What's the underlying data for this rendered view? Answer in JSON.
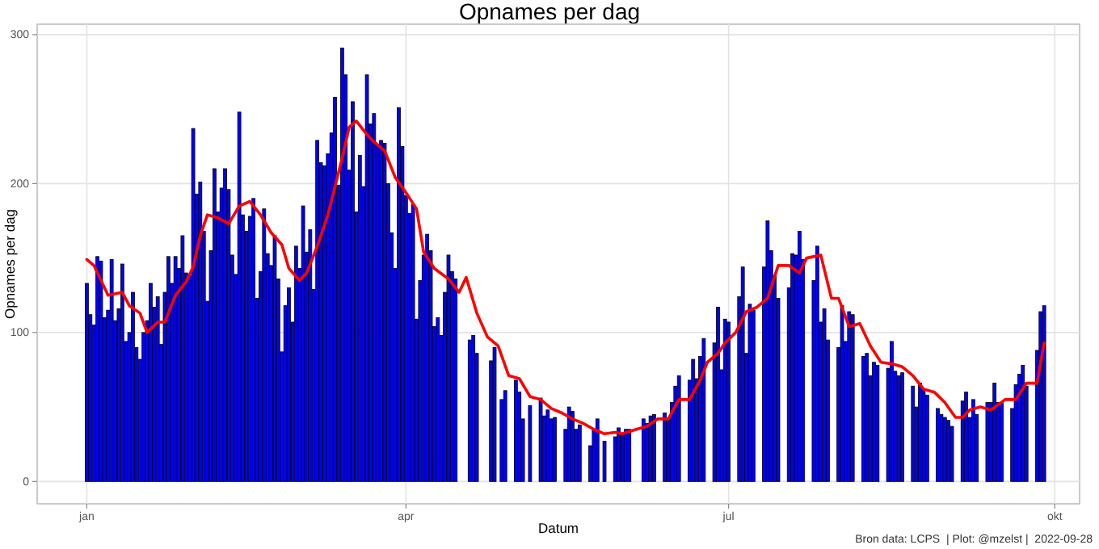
{
  "chart_data": {
    "type": "bar",
    "title": "Opnames per dag",
    "xlabel": "Datum",
    "ylabel": "Opnames per dag",
    "annotations": [
      "Bron data: LCPS  | Plot: @mzelst |  2022-09-28"
    ],
    "xlim": [
      "2021-12-18",
      "2022-10-08"
    ],
    "ylim": [
      -15,
      307
    ],
    "xticks": [
      {
        "value": "2022-01-01",
        "label": "jan"
      },
      {
        "value": "2022-04-01",
        "label": "apr"
      },
      {
        "value": "2022-07-01",
        "label": "jul"
      },
      {
        "value": "2022-10-01",
        "label": "okt"
      }
    ],
    "yticks": [
      0,
      100,
      200,
      300
    ],
    "grid": true,
    "series": [
      {
        "color": "#0000ff",
        "x": [
          "2022-01-01",
          "2022-01-02",
          "2022-01-03",
          "2022-01-04",
          "2022-01-05",
          "2022-01-06",
          "2022-01-07",
          "2022-01-08",
          "2022-01-09",
          "2022-01-10",
          "2022-01-11",
          "2022-01-12",
          "2022-01-13",
          "2022-01-14",
          "2022-01-15",
          "2022-01-16",
          "2022-01-17",
          "2022-01-18",
          "2022-01-19",
          "2022-01-20",
          "2022-01-21",
          "2022-01-22",
          "2022-01-23",
          "2022-01-24",
          "2022-01-25",
          "2022-01-26",
          "2022-01-27",
          "2022-01-28",
          "2022-01-29",
          "2022-01-30",
          "2022-01-31",
          "2022-02-01",
          "2022-02-02",
          "2022-02-03",
          "2022-02-04",
          "2022-02-05",
          "2022-02-06",
          "2022-02-07",
          "2022-02-08",
          "2022-02-09",
          "2022-02-10",
          "2022-02-11",
          "2022-02-12",
          "2022-02-13",
          "2022-02-14",
          "2022-02-15",
          "2022-02-16",
          "2022-02-17",
          "2022-02-18",
          "2022-02-19",
          "2022-02-20",
          "2022-02-21",
          "2022-02-22",
          "2022-02-23",
          "2022-02-24",
          "2022-02-25",
          "2022-02-26",
          "2022-02-27",
          "2022-02-28",
          "2022-03-01",
          "2022-03-02",
          "2022-03-03",
          "2022-03-04",
          "2022-03-05",
          "2022-03-06",
          "2022-03-07",
          "2022-03-08",
          "2022-03-09",
          "2022-03-10",
          "2022-03-11",
          "2022-03-12",
          "2022-03-13",
          "2022-03-14",
          "2022-03-15",
          "2022-03-16",
          "2022-03-17",
          "2022-03-18",
          "2022-03-19",
          "2022-03-20",
          "2022-03-21",
          "2022-03-22",
          "2022-03-23",
          "2022-03-24",
          "2022-03-25",
          "2022-03-26",
          "2022-03-27",
          "2022-03-28",
          "2022-03-29",
          "2022-03-30",
          "2022-03-31",
          "2022-04-01",
          "2022-04-02",
          "2022-04-03",
          "2022-04-04",
          "2022-04-05",
          "2022-04-06",
          "2022-04-07",
          "2022-04-08",
          "2022-04-09",
          "2022-04-10",
          "2022-04-11",
          "2022-04-12",
          "2022-04-13",
          "2022-04-14",
          "2022-04-15",
          "2022-04-19",
          "2022-04-20",
          "2022-04-21",
          "2022-04-25",
          "2022-04-26",
          "2022-04-28",
          "2022-04-29",
          "2022-05-02",
          "2022-05-03",
          "2022-05-04",
          "2022-05-06",
          "2022-05-09",
          "2022-05-10",
          "2022-05-11",
          "2022-05-12",
          "2022-05-13",
          "2022-05-16",
          "2022-05-17",
          "2022-05-18",
          "2022-05-19",
          "2022-05-20",
          "2022-05-23",
          "2022-05-24",
          "2022-05-25",
          "2022-05-27",
          "2022-05-30",
          "2022-05-31",
          "2022-06-01",
          "2022-06-02",
          "2022-06-03",
          "2022-06-07",
          "2022-06-08",
          "2022-06-09",
          "2022-06-10",
          "2022-06-13",
          "2022-06-14",
          "2022-06-15",
          "2022-06-16",
          "2022-06-17",
          "2022-06-20",
          "2022-06-21",
          "2022-06-22",
          "2022-06-23",
          "2022-06-24",
          "2022-06-27",
          "2022-06-28",
          "2022-06-29",
          "2022-06-30",
          "2022-07-01",
          "2022-07-04",
          "2022-07-05",
          "2022-07-06",
          "2022-07-07",
          "2022-07-08",
          "2022-07-11",
          "2022-07-12",
          "2022-07-13",
          "2022-07-14",
          "2022-07-15",
          "2022-07-18",
          "2022-07-19",
          "2022-07-20",
          "2022-07-21",
          "2022-07-22",
          "2022-07-25",
          "2022-07-26",
          "2022-07-27",
          "2022-07-28",
          "2022-07-29",
          "2022-08-01",
          "2022-08-02",
          "2022-08-03",
          "2022-08-04",
          "2022-08-05",
          "2022-08-08",
          "2022-08-09",
          "2022-08-10",
          "2022-08-11",
          "2022-08-12",
          "2022-08-15",
          "2022-08-16",
          "2022-08-17",
          "2022-08-18",
          "2022-08-19",
          "2022-08-22",
          "2022-08-23",
          "2022-08-24",
          "2022-08-25",
          "2022-08-26",
          "2022-08-29",
          "2022-08-30",
          "2022-08-31",
          "2022-09-01",
          "2022-09-02",
          "2022-09-05",
          "2022-09-06",
          "2022-09-07",
          "2022-09-08",
          "2022-09-09",
          "2022-09-12",
          "2022-09-13",
          "2022-09-14",
          "2022-09-15",
          "2022-09-16",
          "2022-09-19",
          "2022-09-20",
          "2022-09-21",
          "2022-09-22",
          "2022-09-23",
          "2022-09-26",
          "2022-09-27",
          "2022-09-28"
        ],
        "values": [
          133,
          112,
          105,
          151,
          148,
          110,
          115,
          149,
          108,
          116,
          146,
          94,
          100,
          127,
          90,
          82,
          100,
          108,
          133,
          117,
          124,
          92,
          127,
          151,
          133,
          151,
          143,
          165,
          140,
          138,
          237,
          193,
          201,
          168,
          121,
          155,
          210,
          181,
          197,
          210,
          196,
          152,
          139,
          248,
          179,
          168,
          178,
          190,
          123,
          141,
          183,
          153,
          145,
          165,
          136,
          87,
          118,
          130,
          107,
          158,
          143,
          185,
          154,
          169,
          129,
          229,
          214,
          212,
          220,
          234,
          258,
          199,
          291,
          273,
          209,
          255,
          181,
          219,
          198,
          273,
          240,
          247,
          226,
          229,
          227,
          200,
          167,
          143,
          251,
          225,
          192,
          180,
          186,
          109,
          135,
          152,
          166,
          155,
          104,
          110,
          98,
          127,
          152,
          141,
          136,
          95,
          98,
          86,
          81,
          90,
          55,
          61,
          68,
          60,
          42,
          51,
          56,
          44,
          48,
          42,
          43,
          35,
          50,
          47,
          35,
          38,
          24,
          35,
          42,
          27,
          30,
          36,
          32,
          35,
          35,
          42,
          39,
          44,
          45,
          46,
          42,
          53,
          64,
          71,
          68,
          82,
          69,
          84,
          96,
          93,
          117,
          75,
          109,
          107,
          124,
          144,
          86,
          119,
          115,
          144,
          175,
          155,
          138,
          123,
          130,
          153,
          152,
          168,
          149,
          135,
          158,
          107,
          116,
          95,
          90,
          118,
          94,
          114,
          112,
          84,
          86,
          71,
          80,
          78,
          76,
          94,
          74,
          71,
          73,
          64,
          50,
          66,
          62,
          58,
          49,
          45,
          43,
          41,
          37,
          54,
          60,
          43,
          55,
          45,
          53,
          53,
          66,
          53,
          53,
          49,
          65,
          72,
          78,
          64,
          88,
          114,
          118
        ]
      },
      {
        "type": "line",
        "color": "#ff0000",
        "x": [
          "2022-01-01",
          "2022-01-03",
          "2022-01-07",
          "2022-01-11",
          "2022-01-13",
          "2022-01-16",
          "2022-01-18",
          "2022-01-21",
          "2022-01-23",
          "2022-01-26",
          "2022-01-29",
          "2022-01-31",
          "2022-02-02",
          "2022-02-04",
          "2022-02-07",
          "2022-02-10",
          "2022-02-13",
          "2022-02-16",
          "2022-02-19",
          "2022-02-22",
          "2022-02-25",
          "2022-02-27",
          "2022-03-02",
          "2022-03-04",
          "2022-03-07",
          "2022-03-10",
          "2022-03-14",
          "2022-03-16",
          "2022-03-18",
          "2022-03-21",
          "2022-03-23",
          "2022-03-26",
          "2022-03-29",
          "2022-04-01",
          "2022-04-04",
          "2022-04-06",
          "2022-04-09",
          "2022-04-13",
          "2022-04-16",
          "2022-04-18",
          "2022-04-21",
          "2022-04-24",
          "2022-04-27",
          "2022-04-30",
          "2022-05-03",
          "2022-05-06",
          "2022-05-09",
          "2022-05-12",
          "2022-05-15",
          "2022-05-18",
          "2022-05-21",
          "2022-05-24",
          "2022-05-27",
          "2022-05-30",
          "2022-06-01",
          "2022-06-05",
          "2022-06-08",
          "2022-06-11",
          "2022-06-14",
          "2022-06-17",
          "2022-06-20",
          "2022-06-23",
          "2022-06-25",
          "2022-06-28",
          "2022-06-30",
          "2022-07-03",
          "2022-07-06",
          "2022-07-09",
          "2022-07-12",
          "2022-07-15",
          "2022-07-18",
          "2022-07-21",
          "2022-07-23",
          "2022-07-27",
          "2022-07-30",
          "2022-08-01",
          "2022-08-04",
          "2022-08-07",
          "2022-08-10",
          "2022-08-13",
          "2022-08-16",
          "2022-08-19",
          "2022-08-22",
          "2022-08-25",
          "2022-08-28",
          "2022-08-31",
          "2022-09-03",
          "2022-09-05",
          "2022-09-07",
          "2022-09-10",
          "2022-09-13",
          "2022-09-17",
          "2022-09-20",
          "2022-09-23",
          "2022-09-26",
          "2022-09-28"
        ],
        "values": [
          149,
          145,
          125,
          127,
          118,
          113,
          100,
          107,
          107,
          125,
          134,
          144,
          165,
          179,
          177,
          173,
          185,
          188,
          179,
          167,
          159,
          143,
          135,
          140,
          158,
          179,
          217,
          238,
          242,
          233,
          228,
          222,
          204,
          194,
          183,
          154,
          143,
          136,
          127,
          137,
          113,
          97,
          91,
          71,
          69,
          57,
          55,
          49,
          46,
          42,
          39,
          35,
          32,
          33,
          32,
          35,
          37,
          42,
          42,
          55,
          55,
          68,
          80,
          86,
          93,
          100,
          114,
          117,
          123,
          145,
          145,
          140,
          150,
          152,
          123,
          123,
          104,
          106,
          91,
          80,
          79,
          77,
          71,
          62,
          60,
          53,
          43,
          43,
          48,
          50,
          48,
          55,
          55,
          66,
          66,
          93
        ]
      }
    ]
  }
}
